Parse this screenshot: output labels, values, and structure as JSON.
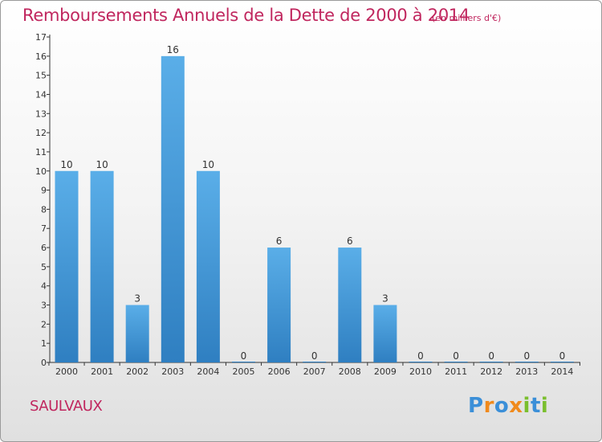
{
  "title": "Remboursements Annuels de la Dette de 2000 à 2014",
  "unit_note": "(en milliers d'€)",
  "town": "SAULVAUX",
  "logo": {
    "text": "Proxiti",
    "letters": [
      {
        "char": "P",
        "color": "#3b8fd8"
      },
      {
        "char": "r",
        "color": "#f08a1c"
      },
      {
        "char": "o",
        "color": "#3b8fd8"
      },
      {
        "char": "x",
        "color": "#f08a1c"
      },
      {
        "char": "i",
        "color": "#7bbf2e"
      },
      {
        "char": "t",
        "color": "#3b8fd8"
      },
      {
        "char": "i",
        "color": "#7bbf2e"
      }
    ]
  },
  "colors": {
    "title": "#c0265e",
    "bar_top": "#5aaee8",
    "bar_bottom": "#2f7fc1",
    "axis": "#333333"
  },
  "chart_data": {
    "type": "bar",
    "categories": [
      "2000",
      "2001",
      "2002",
      "2003",
      "2004",
      "2005",
      "2006",
      "2007",
      "2008",
      "2009",
      "2010",
      "2011",
      "2012",
      "2013",
      "2014"
    ],
    "values": [
      10,
      10,
      3,
      16,
      10,
      0,
      6,
      0,
      6,
      3,
      0,
      0,
      0,
      0,
      0
    ],
    "y_ticks": [
      "0",
      "1",
      "2",
      "3",
      "4",
      "5",
      "6",
      "7",
      "8",
      "9",
      "10",
      "11",
      "12",
      "13",
      "14",
      "15",
      "16",
      "17"
    ],
    "ylim": [
      0,
      17
    ],
    "grid": false,
    "legend": "none"
  }
}
